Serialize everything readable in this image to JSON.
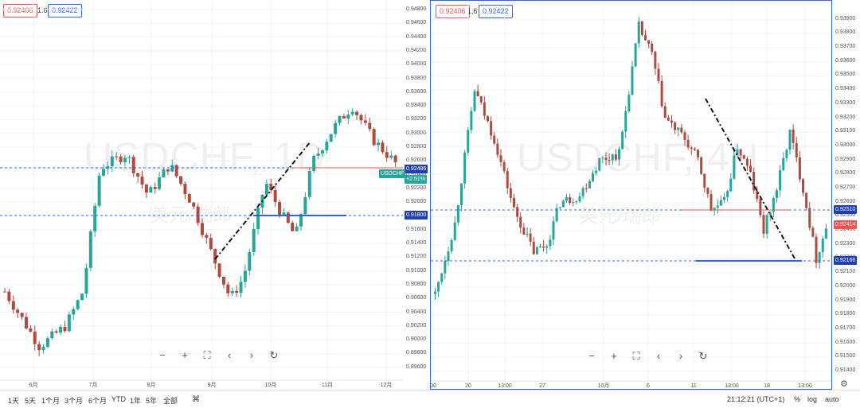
{
  "left": {
    "bid": "0.92406",
    "spread": "1.6",
    "ask": "0.92422",
    "watermark": "USDCHF, 1D",
    "watermark_sub": "美元/瑞郎",
    "symbol_tag": "USDCHF",
    "price_tag": "0.92486",
    "change_tag": "+2.51%",
    "level_tag": "0.91800"
  },
  "right": {
    "bid": "0.92406",
    "spread": "1.6",
    "ask": "0.92422",
    "watermark": "USDCHF, 4H",
    "watermark_sub": "美元/瑞郎",
    "tag1": "0.92510",
    "tag2": "0.92414",
    "tag3": "0.92166"
  },
  "nav_icons": [
    "minus-icon",
    "plus-icon",
    "fit-icon",
    "chevron-left-icon",
    "chevron-right-icon",
    "reset-icon"
  ],
  "nav_glyphs": [
    "−",
    "+",
    "⛶",
    "‹",
    "›",
    "↻"
  ],
  "bottom": {
    "timeframes": [
      "1天",
      "5天",
      "1个月",
      "3个月",
      "6个月",
      "YTD",
      "1年",
      "5年",
      "全部"
    ],
    "clock": "21:12:21 (UTC+1)",
    "percent": "%",
    "log": "log",
    "auto": "auto"
  },
  "colors": {
    "up": "#26a69a",
    "down": "#b14a3c",
    "blue": "#2962ff",
    "red": "#ef5350",
    "line": "#3b4bd6"
  },
  "chart_data": [
    {
      "type": "candlestick",
      "title": "USDCHF, 1D",
      "ylim": [
        0.8955,
        0.9487
      ],
      "y_ticks": [
        0.948,
        0.946,
        0.944,
        0.942,
        0.94,
        0.938,
        0.936,
        0.934,
        0.932,
        0.93,
        0.928,
        0.926,
        0.924,
        0.922,
        0.92,
        0.918,
        0.916,
        0.914,
        0.912,
        0.91,
        0.908,
        0.906,
        0.904,
        0.902,
        0.9,
        0.898,
        0.896
      ],
      "x_labels": [
        "6月",
        "7月",
        "8月",
        "9月",
        "10月",
        "11月",
        "12月"
      ],
      "horizontal_lines": [
        0.92486,
        0.918
      ],
      "trendline": [
        [
          0.9114
        ],
        [
          0.9285
        ]
      ],
      "candle_count": 92
    },
    {
      "type": "candlestick",
      "title": "USDCHF, 4H",
      "ylim": [
        0.914,
        0.94
      ],
      "y_ticks": [
        0.939,
        0.938,
        0.937,
        0.936,
        0.935,
        0.934,
        0.933,
        0.932,
        0.931,
        0.93,
        0.929,
        0.928,
        0.927,
        0.926,
        0.925,
        0.924,
        0.923,
        0.922,
        0.921,
        0.92,
        0.919,
        0.918,
        0.917,
        0.916,
        0.915,
        0.914
      ],
      "x_labels": [
        "00",
        "20",
        "13:00",
        "27",
        "10月",
        "6",
        "11",
        "13:00",
        "18",
        "13:00"
      ],
      "horizontal_lines": [
        0.9251,
        0.92166
      ],
      "trendline": [
        [
          0.9328
        ],
        [
          0.9219
        ]
      ],
      "candle_count": 120
    }
  ]
}
